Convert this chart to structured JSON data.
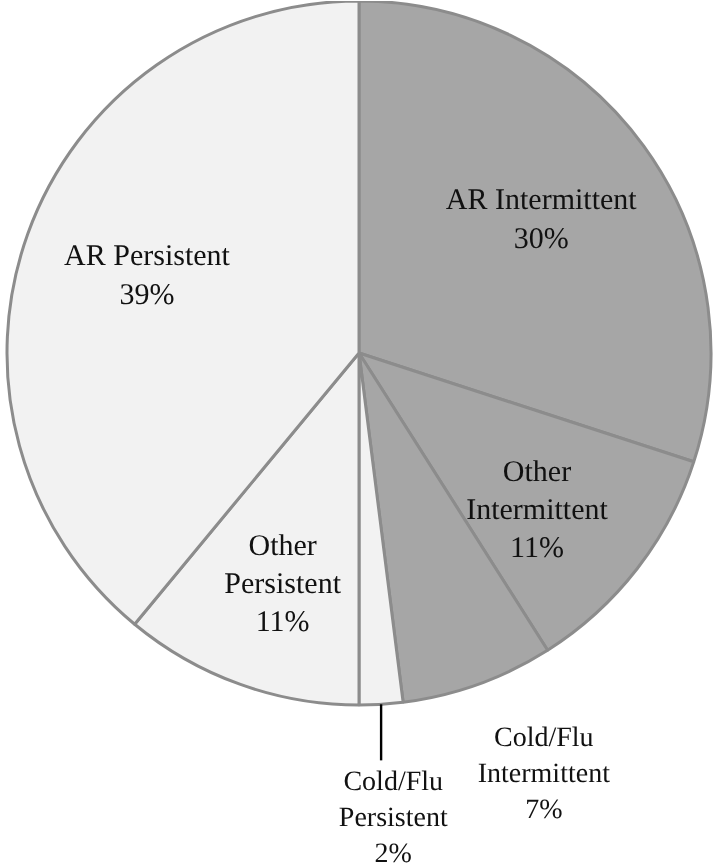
{
  "chart_data": {
    "type": "pie",
    "categories": [
      "AR Intermittent",
      "Other Intermittent",
      "Cold/Flu Intermittent",
      "Cold/Flu Persistent",
      "Other Persistent",
      "AR Persistent"
    ],
    "values": [
      30,
      11,
      7,
      2,
      11,
      39
    ],
    "value_labels": [
      "30%",
      "11%",
      "7%",
      "2%",
      "11%",
      "39%"
    ],
    "colors": [
      "#a6a6a6",
      "#a6a6a6",
      "#a6a6a6",
      "#f2f2f2",
      "#f2f2f2",
      "#f2f2f2"
    ]
  }
}
